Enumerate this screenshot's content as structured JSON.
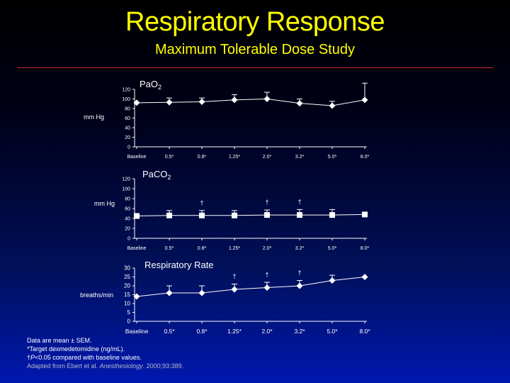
{
  "slide": {
    "title": "Respiratory Response",
    "subtitle": "Maximum Tolerable Dose Study"
  },
  "chart_data": [
    {
      "type": "line",
      "title": "PaO",
      "title_subscript": "2",
      "ylabel": "mm Hg",
      "ylim": [
        0,
        120
      ],
      "yticks": [
        "0",
        "20",
        "40",
        "60",
        "80",
        "100",
        "120"
      ],
      "categories": [
        "Baseline",
        "0.5*",
        "0.8*",
        "1.25*",
        "2.0*",
        "3.2*",
        "5.0*",
        "8.0*"
      ],
      "marker": "diamond",
      "values": [
        92,
        93,
        94,
        98,
        100,
        91,
        86,
        98
      ],
      "error": [
        0,
        9,
        8,
        11,
        14,
        9,
        9,
        35
      ],
      "annotations": []
    },
    {
      "type": "line",
      "title": "PaCO",
      "title_subscript": "2",
      "ylabel": "mm Hg",
      "ylim": [
        0,
        120
      ],
      "yticks": [
        "0",
        "20",
        "40",
        "60",
        "80",
        "100",
        "120"
      ],
      "categories": [
        "Baseline",
        "0.5*",
        "0.8*",
        "1.25*",
        "2.0*",
        "3.2*",
        "5.0*",
        "8.0*"
      ],
      "marker": "square",
      "values": [
        45,
        46,
        46,
        46,
        47,
        47,
        47,
        48
      ],
      "error": [
        0,
        10,
        10,
        10,
        10,
        11,
        11,
        0
      ],
      "annotations": [
        {
          "index": 2,
          "text": "†"
        },
        {
          "index": 4,
          "text": "†"
        },
        {
          "index": 5,
          "text": "†"
        }
      ]
    },
    {
      "type": "line",
      "title": "Respiratory Rate",
      "ylabel": "breaths/min",
      "ylim": [
        0,
        30
      ],
      "yticks": [
        "0",
        "5",
        "10",
        "15",
        "20",
        "25",
        "30"
      ],
      "categories": [
        "Baseline",
        "0.5*",
        "0.8*",
        "1.25*",
        "2.0*",
        "3.2*",
        "5.0*",
        "8.0*"
      ],
      "marker": "diamond",
      "values": [
        14,
        16,
        16,
        18,
        19,
        20,
        23,
        25
      ],
      "error": [
        0,
        4,
        4,
        3,
        3,
        3,
        3,
        0
      ],
      "annotations": [
        {
          "index": 3,
          "text": "†"
        },
        {
          "index": 4,
          "text": "†"
        },
        {
          "index": 5,
          "text": "†"
        }
      ]
    }
  ],
  "footnotes": {
    "line1": "Data are mean ± SEM.",
    "line2": "*Target dexmedetomidine (ng/mL).",
    "line3_dagger": "†",
    "line3_p": "P",
    "line3_rest": "<0.05 compared with baseline values.",
    "line4_prefix": "Adapted from Ebert et al. ",
    "line4_journal": "Anesthesiology",
    "line4_suffix": ". 2000;93:389."
  },
  "colors": {
    "title": "#ffff00",
    "text": "#ffffff",
    "rule": "#c03030"
  }
}
